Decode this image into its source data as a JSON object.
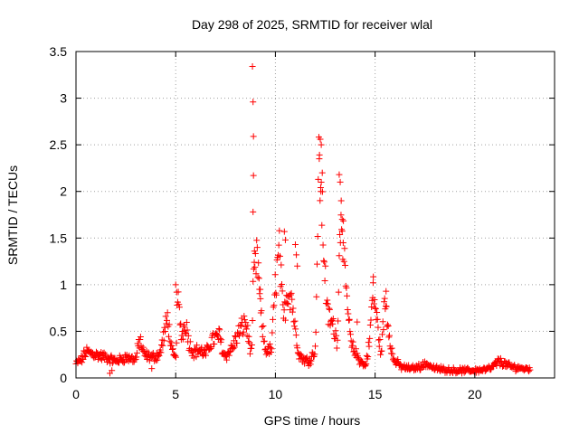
{
  "chart_data": {
    "type": "scatter",
    "title": "Day 298 of 2025, SRMTID for receiver wlal",
    "xlabel": "GPS time / hours",
    "ylabel": "SRMTID / TECUs",
    "xlim": [
      0,
      24
    ],
    "ylim": [
      0,
      3.5
    ],
    "xticks": [
      0,
      5,
      10,
      15,
      20
    ],
    "xtick_labels": [
      "0",
      "5",
      "10",
      "15",
      "20"
    ],
    "yticks": [
      0,
      0.5,
      1,
      1.5,
      2,
      2.5,
      3,
      3.5
    ],
    "ytick_labels": [
      "0",
      "0.5",
      "1",
      "1.5",
      "2",
      "2.5",
      "3",
      "3.5"
    ],
    "grid": true,
    "marker": "+",
    "series_color": "#ff0000",
    "profile_anchors": {
      "x": [
        0,
        0.3,
        0.5,
        1.0,
        1.5,
        2.0,
        2.5,
        3.0,
        3.2,
        3.4,
        3.8,
        4.2,
        4.4,
        4.6,
        4.8,
        5.0,
        5.1,
        5.3,
        5.5,
        5.7,
        5.9,
        6.2,
        6.5,
        6.8,
        7.2,
        7.4,
        7.6,
        7.9,
        8.2,
        8.5,
        8.8,
        8.9,
        9.1,
        9.3,
        9.5,
        9.8,
        10.0,
        10.2,
        10.4,
        10.6,
        10.8,
        11.0,
        11.2,
        11.4,
        11.7,
        12.0,
        12.2,
        12.4,
        12.6,
        12.9,
        13.1,
        13.3,
        13.5,
        13.8,
        14.2,
        14.5,
        14.7,
        14.9,
        15.1,
        15.3,
        15.5,
        15.7,
        15.9,
        16.3,
        16.8,
        17.2,
        17.6,
        18.0,
        19.0,
        20.0,
        20.8,
        21.2,
        21.8,
        22.5,
        22.8
      ],
      "y": [
        0.15,
        0.2,
        0.28,
        0.25,
        0.22,
        0.18,
        0.22,
        0.2,
        0.42,
        0.25,
        0.22,
        0.25,
        0.45,
        0.65,
        0.28,
        0.2,
        0.85,
        0.45,
        0.6,
        0.35,
        0.28,
        0.3,
        0.25,
        0.4,
        0.45,
        0.25,
        0.25,
        0.35,
        0.5,
        0.6,
        0.25,
        1.0,
        1.3,
        0.6,
        0.3,
        0.3,
        1.0,
        1.35,
        0.6,
        0.95,
        0.9,
        0.5,
        0.25,
        0.2,
        0.18,
        0.3,
        2.4,
        1.5,
        0.7,
        0.55,
        0.4,
        2.0,
        1.0,
        0.35,
        0.2,
        0.12,
        0.35,
        0.95,
        0.6,
        0.25,
        0.85,
        0.5,
        0.2,
        0.12,
        0.1,
        0.12,
        0.15,
        0.1,
        0.08,
        0.08,
        0.1,
        0.18,
        0.12,
        0.1,
        0.1
      ]
    },
    "sample_step_hours": 0.03,
    "spike_points": [
      {
        "x": 8.85,
        "y": 3.34
      },
      {
        "x": 8.88,
        "y": 2.96
      },
      {
        "x": 8.9,
        "y": 2.59
      },
      {
        "x": 8.9,
        "y": 2.17
      },
      {
        "x": 8.88,
        "y": 1.78
      },
      {
        "x": 8.95,
        "y": 1.36
      },
      {
        "x": 12.25,
        "y": 2.56
      },
      {
        "x": 12.3,
        "y": 2.5
      },
      {
        "x": 12.2,
        "y": 2.35
      },
      {
        "x": 12.35,
        "y": 2.2
      },
      {
        "x": 12.28,
        "y": 2.0
      },
      {
        "x": 13.2,
        "y": 2.18
      },
      {
        "x": 13.25,
        "y": 2.1
      },
      {
        "x": 13.3,
        "y": 1.9
      },
      {
        "x": 13.35,
        "y": 1.7
      },
      {
        "x": 13.4,
        "y": 1.45
      },
      {
        "x": 10.45,
        "y": 1.57
      },
      {
        "x": 10.5,
        "y": 1.48
      },
      {
        "x": 11.0,
        "y": 1.43
      },
      {
        "x": 11.05,
        "y": 1.32
      },
      {
        "x": 11.1,
        "y": 1.2
      },
      {
        "x": 5.0,
        "y": 1.0
      },
      {
        "x": 5.05,
        "y": 0.92
      },
      {
        "x": 14.9,
        "y": 1.02
      },
      {
        "x": 15.55,
        "y": 0.93
      },
      {
        "x": 9.2,
        "y": 0.95
      },
      {
        "x": 9.25,
        "y": 0.85
      },
      {
        "x": 13.7,
        "y": 0.62
      },
      {
        "x": 14.1,
        "y": 0.6
      },
      {
        "x": 1.7,
        "y": 0.05
      },
      {
        "x": 1.8,
        "y": 0.08
      },
      {
        "x": 3.8,
        "y": 0.1
      }
    ]
  }
}
